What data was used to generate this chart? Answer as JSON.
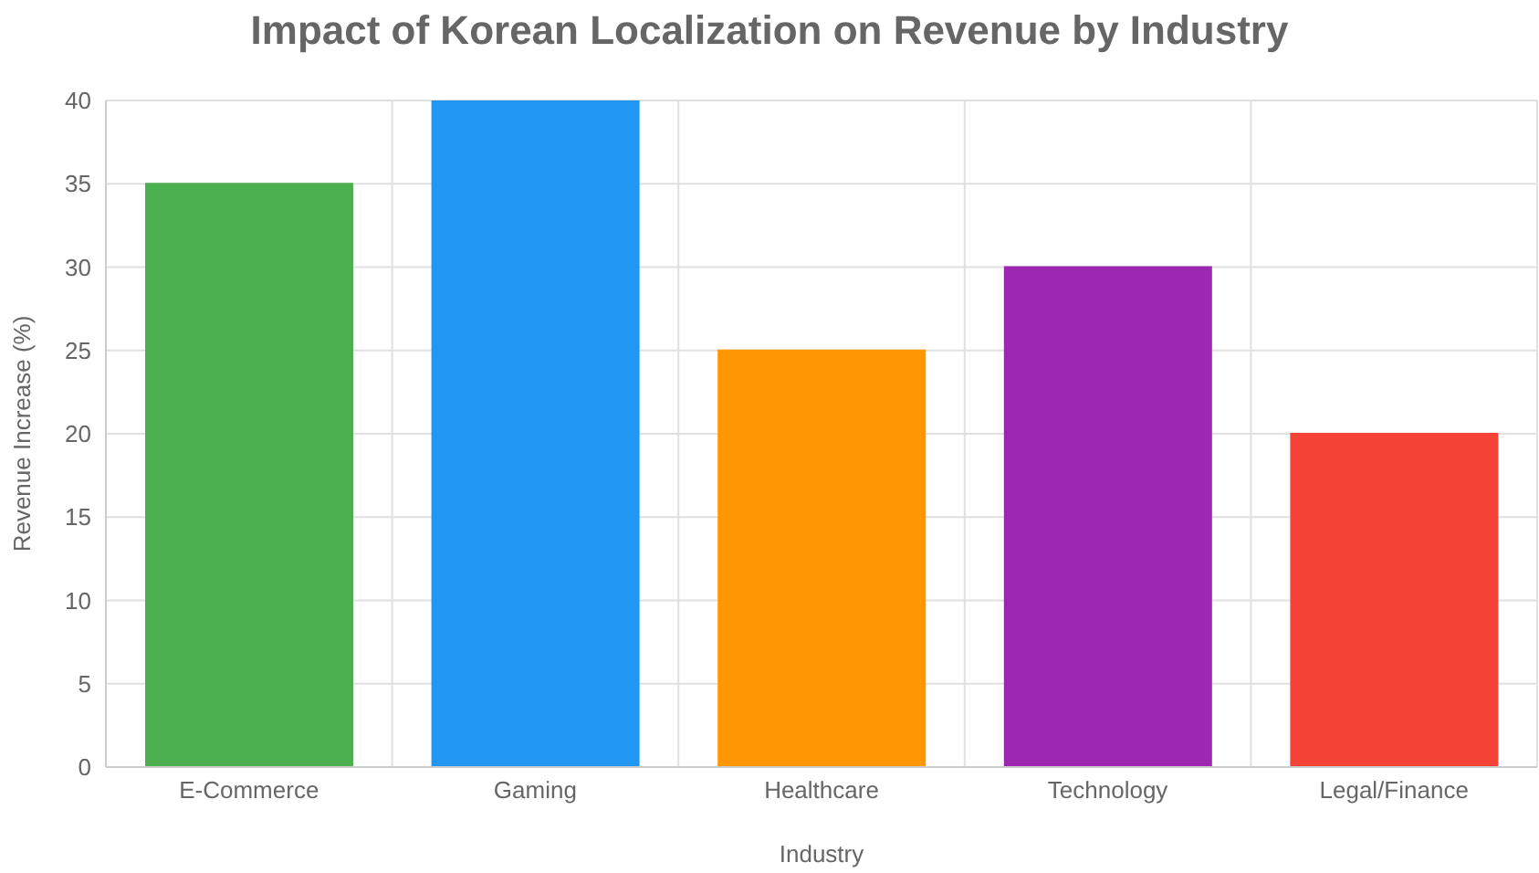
{
  "chart_data": {
    "type": "bar",
    "title": "Impact of Korean Localization on Revenue by Industry",
    "xlabel": "Industry",
    "ylabel": "Revenue Increase (%)",
    "categories": [
      "E-Commerce",
      "Gaming",
      "Healthcare",
      "Technology",
      "Legal/Finance"
    ],
    "values": [
      35,
      40,
      25,
      30,
      20
    ],
    "colors": [
      "#4caf50",
      "#2196f3",
      "#ff9800",
      "#9c27b0",
      "#f44336"
    ],
    "ylim": [
      0,
      40
    ],
    "yticks": [
      0,
      5,
      10,
      15,
      20,
      25,
      30,
      35,
      40
    ],
    "grid": true
  }
}
